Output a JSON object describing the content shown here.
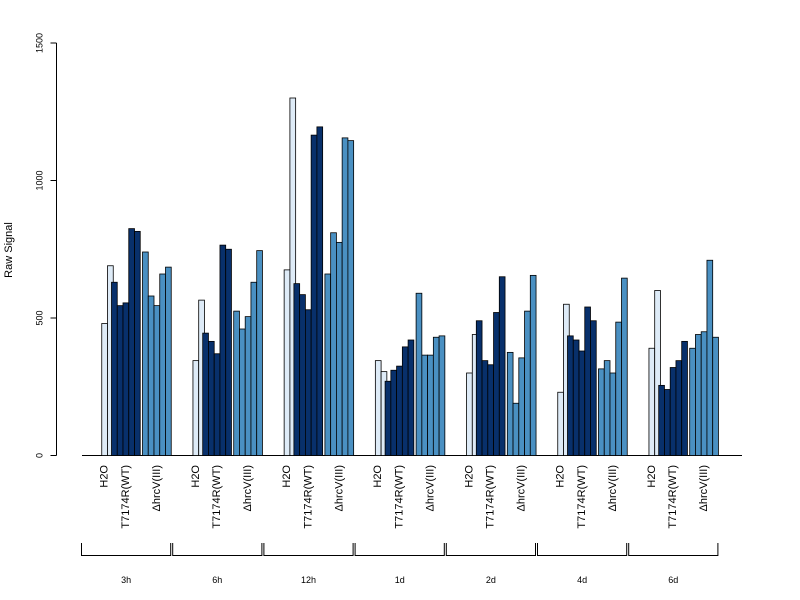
{
  "chart_data": {
    "type": "bar",
    "title": "",
    "ylabel": "Raw Signal",
    "ylim": [
      0,
      1500
    ],
    "yticks": [
      0,
      500,
      1000,
      1500
    ],
    "grid": false,
    "treatments": [
      "H2O",
      "T7174R(WT)",
      "ΔhrcV(III)"
    ],
    "series_colors": {
      "H2O": "#deebf7",
      "T7174R(WT)": "#08306b",
      "ΔhrcV(III)": "#4a90c2"
    },
    "groups": [
      {
        "label": "3h",
        "values": {
          "H2O": [
            0,
            480,
            690
          ],
          "T7174R(WT)": [
            630,
            545,
            555,
            825,
            815
          ],
          "ΔhrcV(III)": [
            740,
            580,
            545,
            660,
            685
          ]
        }
      },
      {
        "label": "6h",
        "values": {
          "H2O": [
            0,
            345,
            565
          ],
          "T7174R(WT)": [
            445,
            415,
            370,
            765,
            750
          ],
          "ΔhrcV(III)": [
            525,
            460,
            505,
            630,
            745
          ]
        }
      },
      {
        "label": "12h",
        "values": {
          "H2O": [
            0,
            675,
            1300
          ],
          "T7174R(WT)": [
            625,
            585,
            530,
            1165,
            1195
          ],
          "ΔhrcV(III)": [
            660,
            810,
            775,
            1155,
            1145
          ]
        }
      },
      {
        "label": "1d",
        "values": {
          "H2O": [
            0,
            345,
            305
          ],
          "T7174R(WT)": [
            270,
            310,
            325,
            395,
            420
          ],
          "ΔhrcV(III)": [
            590,
            365,
            365,
            430,
            435
          ]
        }
      },
      {
        "label": "2d",
        "values": {
          "H2O": [
            0,
            300,
            440
          ],
          "T7174R(WT)": [
            490,
            345,
            330,
            520,
            650
          ],
          "ΔhrcV(III)": [
            375,
            190,
            355,
            525,
            655
          ]
        }
      },
      {
        "label": "4d",
        "values": {
          "H2O": [
            0,
            230,
            550
          ],
          "T7174R(WT)": [
            435,
            420,
            380,
            540,
            490
          ],
          "ΔhrcV(III)": [
            315,
            345,
            300,
            485,
            645
          ]
        }
      },
      {
        "label": "6d",
        "values": {
          "H2O": [
            0,
            390,
            600
          ],
          "T7174R(WT)": [
            255,
            240,
            320,
            345,
            415
          ],
          "ΔhrcV(III)": [
            390,
            440,
            450,
            710,
            430
          ]
        }
      }
    ]
  }
}
